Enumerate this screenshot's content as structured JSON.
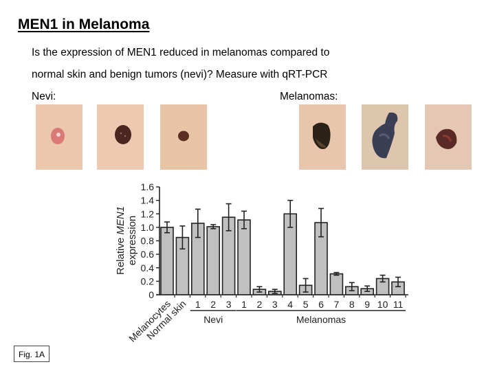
{
  "slide": {
    "title": "MEN1 in Melanoma",
    "question_line1": "Is the expression of MEN1 reduced in melanomas compared to",
    "question_line2": "normal skin and benign tumors (nevi)?  Measure with qRT-PCR",
    "nevi_label": "Nevi:",
    "melanomas_label": "Melanomas:",
    "figure_label": "Fig. 1A"
  },
  "photos": {
    "nevi": [
      {
        "name": "nevus-1",
        "skin": "#e9c3a6",
        "lesion": "#d97a78"
      },
      {
        "name": "nevus-2",
        "skin": "#ecc5ab",
        "lesion": "#4a2620"
      },
      {
        "name": "nevus-3",
        "skin": "#e8c0a0",
        "lesion": "#5a2e22"
      }
    ],
    "melanomas": [
      {
        "name": "melanoma-1",
        "skin": "#e6c2a6",
        "lesion": "#2c2218"
      },
      {
        "name": "melanoma-2",
        "skin": "#dcc0a8",
        "lesion": "#3a3f55"
      },
      {
        "name": "melanoma-3",
        "skin": "#e2c4ae",
        "lesion": "#5a2a26"
      }
    ]
  },
  "chart_data": {
    "type": "bar",
    "title": "",
    "ylabel": "Relative MEN1 expression",
    "ylabel_line1": "Relative ",
    "ylabel_italic": "MEN1",
    "ylabel_line2": "expression",
    "xlabel": "",
    "ylim": [
      0,
      1.6
    ],
    "yticks": [
      "0",
      "0.2",
      "0.4",
      "0.6",
      "0.8",
      "1.0",
      "1.2",
      "1.4",
      "1.6"
    ],
    "grid": false,
    "bar_color": "#c0c0c0",
    "categories": [
      "Melanocytes",
      "Normal skin",
      "Nevi 1",
      "Nevi 2",
      "Nevi 3",
      "Melanoma 1",
      "Melanoma 2",
      "Melanoma 3",
      "Melanoma 4",
      "Melanoma 5",
      "Melanoma 6",
      "Melanoma 7",
      "Melanoma 8",
      "Melanoma 9",
      "Melanoma 10",
      "Melanoma 11"
    ],
    "tick_labels": [
      "Melanocytes",
      "Normal skin",
      "1",
      "2",
      "3",
      "1",
      "2",
      "3",
      "4",
      "5",
      "6",
      "7",
      "8",
      "9",
      "10",
      "11"
    ],
    "values": [
      1.0,
      0.85,
      1.06,
      1.01,
      1.15,
      1.11,
      0.08,
      0.05,
      1.2,
      0.14,
      1.07,
      0.31,
      0.12,
      0.09,
      0.24,
      0.19
    ],
    "errors": [
      0.08,
      0.17,
      0.21,
      0.03,
      0.2,
      0.13,
      0.04,
      0.03,
      0.2,
      0.1,
      0.21,
      0.02,
      0.06,
      0.04,
      0.05,
      0.07
    ],
    "groups": [
      {
        "label": "Nevi",
        "start": 2,
        "end": 4
      },
      {
        "label": "Melanomas",
        "start": 5,
        "end": 15
      }
    ]
  }
}
